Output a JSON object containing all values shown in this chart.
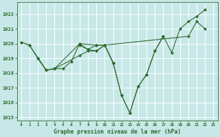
{
  "title": "Graphe pression niveau de la mer (hPa)",
  "bg_color": "#c8e8e8",
  "grid_color": "#ffffff",
  "line_color": "#2d6a2d",
  "marker_color": "#2d6a2d",
  "xlim": [
    -0.5,
    23.5
  ],
  "ylim": [
    1014.8,
    1022.8
  ],
  "yticks": [
    1015,
    1016,
    1017,
    1018,
    1019,
    1020,
    1021,
    1022
  ],
  "xticks": [
    0,
    1,
    2,
    3,
    4,
    5,
    6,
    7,
    8,
    9,
    10,
    11,
    12,
    13,
    14,
    15,
    16,
    17,
    18,
    19,
    20,
    21,
    22,
    23
  ],
  "series": [
    {
      "x": [
        0,
        1,
        3,
        4,
        7,
        9,
        10,
        20,
        21,
        22
      ],
      "y": [
        1020.1,
        1019.9,
        1018.2,
        1018.3,
        1020.0,
        1019.9,
        1019.9,
        1020.5,
        1021.5,
        1021.0
      ]
    },
    {
      "x": [
        2,
        3,
        4,
        7,
        8,
        9,
        10
      ],
      "y": [
        1019.0,
        1018.2,
        1018.3,
        1019.2,
        1019.5,
        1019.5,
        1019.9
      ]
    },
    {
      "x": [
        7,
        8,
        9,
        10,
        11
      ],
      "y": [
        1019.9,
        1019.6,
        1019.5,
        1019.9,
        1018.7
      ]
    },
    {
      "x": [
        0,
        1,
        2,
        3,
        4,
        5,
        6,
        7,
        8,
        9,
        10,
        11,
        12,
        13,
        14,
        15,
        16,
        17
      ],
      "y": [
        1020.1,
        1019.9,
        1019.0,
        1018.2,
        1018.3,
        1018.3,
        1018.8,
        1020.0,
        1019.6,
        1019.9,
        1019.9,
        1018.7,
        1016.5,
        1015.3,
        1017.1,
        1017.9,
        1019.5,
        1020.5
      ]
    },
    {
      "x": [
        10,
        11,
        12,
        13,
        14,
        15,
        16,
        17,
        18,
        19,
        20,
        21,
        22
      ],
      "y": [
        1019.9,
        1018.7,
        1016.5,
        1015.3,
        1017.1,
        1017.9,
        1019.5,
        1020.5,
        1019.4,
        1021.0,
        1021.5,
        1021.85,
        1022.3
      ]
    }
  ]
}
